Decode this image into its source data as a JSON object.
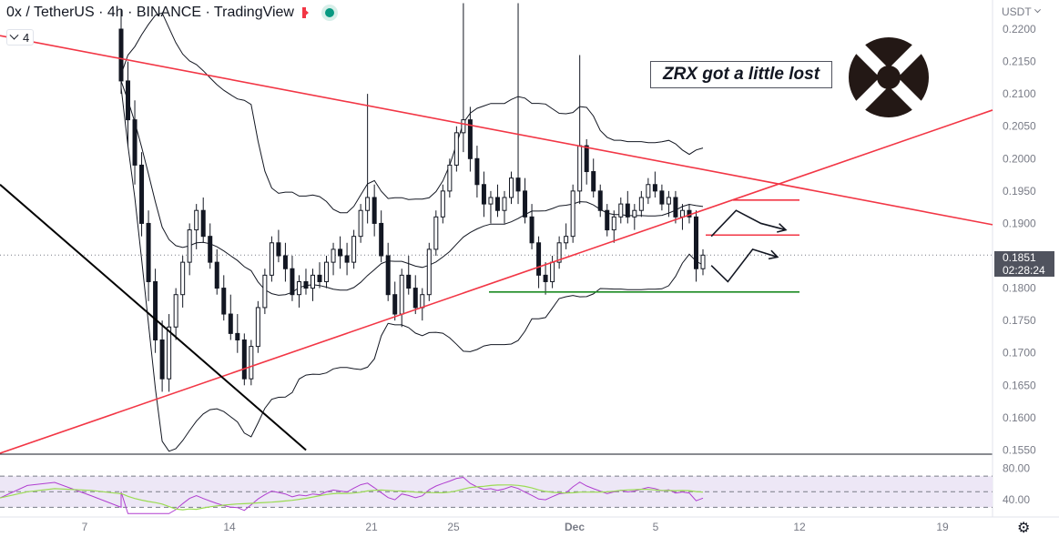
{
  "header": {
    "title": "0x / TetherUS · 4h · BINANCE · TradingView",
    "indicator_count": "4"
  },
  "annotation": "ZRX got a little lost",
  "currency": "USDT",
  "price_tag": {
    "price": "0.1851",
    "countdown": "02:28:24"
  },
  "colors": {
    "trend_red": "#f23645",
    "support_green": "#1b8a22",
    "candle": "#131722",
    "rsi": "#b03fd0",
    "rsi_ma": "#9bdc53",
    "rsi_band": "#ede7f6"
  },
  "chart_data": {
    "type": "candlestick",
    "y_axis": {
      "ticks": [
        "0.2200",
        "0.2150",
        "0.2100",
        "0.2050",
        "0.2000",
        "0.1950",
        "0.1900",
        "0.1850",
        "0.1800",
        "0.1750",
        "0.1700",
        "0.1650",
        "0.1600",
        "0.1550"
      ],
      "ylim": [
        0.1545,
        0.2245
      ]
    },
    "x_axis": {
      "ticks": [
        "7",
        "14",
        "21",
        "25",
        "Dec",
        "5",
        "12",
        "19"
      ]
    },
    "series": [
      {
        "type": "candles",
        "ohlc": [
          [
            0.22,
            0.223,
            0.21,
            0.212
          ],
          [
            0.212,
            0.215,
            0.202,
            0.206
          ],
          [
            0.206,
            0.209,
            0.196,
            0.199
          ],
          [
            0.199,
            0.201,
            0.188,
            0.19
          ],
          [
            0.19,
            0.192,
            0.178,
            0.181
          ],
          [
            0.181,
            0.183,
            0.17,
            0.172
          ],
          [
            0.172,
            0.175,
            0.164,
            0.166
          ],
          [
            0.166,
            0.176,
            0.164,
            0.174
          ],
          [
            0.174,
            0.18,
            0.172,
            0.179
          ],
          [
            0.179,
            0.185,
            0.177,
            0.184
          ],
          [
            0.184,
            0.19,
            0.182,
            0.189
          ],
          [
            0.189,
            0.193,
            0.186,
            0.192
          ],
          [
            0.192,
            0.194,
            0.187,
            0.188
          ],
          [
            0.188,
            0.19,
            0.183,
            0.184
          ],
          [
            0.184,
            0.186,
            0.179,
            0.18
          ],
          [
            0.18,
            0.182,
            0.175,
            0.176
          ],
          [
            0.176,
            0.179,
            0.172,
            0.173
          ],
          [
            0.173,
            0.176,
            0.17,
            0.172
          ],
          [
            0.172,
            0.173,
            0.165,
            0.166
          ],
          [
            0.166,
            0.172,
            0.165,
            0.171
          ],
          [
            0.171,
            0.178,
            0.17,
            0.177
          ],
          [
            0.177,
            0.183,
            0.176,
            0.182
          ],
          [
            0.182,
            0.188,
            0.181,
            0.187
          ],
          [
            0.187,
            0.189,
            0.184,
            0.185
          ],
          [
            0.185,
            0.187,
            0.181,
            0.183
          ],
          [
            0.183,
            0.185,
            0.178,
            0.179
          ],
          [
            0.179,
            0.182,
            0.177,
            0.181
          ],
          [
            0.181,
            0.183,
            0.179,
            0.18
          ],
          [
            0.18,
            0.183,
            0.178,
            0.182
          ],
          [
            0.182,
            0.184,
            0.18,
            0.181
          ],
          [
            0.181,
            0.185,
            0.18,
            0.184
          ],
          [
            0.184,
            0.187,
            0.182,
            0.186
          ],
          [
            0.186,
            0.188,
            0.183,
            0.185
          ],
          [
            0.185,
            0.187,
            0.182,
            0.184
          ],
          [
            0.184,
            0.189,
            0.183,
            0.188
          ],
          [
            0.188,
            0.193,
            0.187,
            0.192
          ],
          [
            0.192,
            0.21,
            0.19,
            0.194
          ],
          [
            0.194,
            0.196,
            0.188,
            0.19
          ],
          [
            0.19,
            0.192,
            0.184,
            0.185
          ],
          [
            0.185,
            0.187,
            0.178,
            0.179
          ],
          [
            0.179,
            0.181,
            0.175,
            0.176
          ],
          [
            0.176,
            0.183,
            0.174,
            0.182
          ],
          [
            0.182,
            0.185,
            0.179,
            0.18
          ],
          [
            0.18,
            0.182,
            0.176,
            0.177
          ],
          [
            0.177,
            0.18,
            0.175,
            0.179
          ],
          [
            0.179,
            0.187,
            0.178,
            0.186
          ],
          [
            0.186,
            0.192,
            0.185,
            0.191
          ],
          [
            0.191,
            0.196,
            0.19,
            0.195
          ],
          [
            0.195,
            0.2,
            0.194,
            0.199
          ],
          [
            0.199,
            0.205,
            0.198,
            0.204
          ],
          [
            0.204,
            0.224,
            0.201,
            0.206
          ],
          [
            0.206,
            0.208,
            0.198,
            0.2
          ],
          [
            0.2,
            0.202,
            0.194,
            0.196
          ],
          [
            0.196,
            0.198,
            0.191,
            0.193
          ],
          [
            0.193,
            0.195,
            0.19,
            0.194
          ],
          [
            0.194,
            0.196,
            0.191,
            0.192
          ],
          [
            0.192,
            0.195,
            0.19,
            0.194
          ],
          [
            0.194,
            0.198,
            0.193,
            0.197
          ],
          [
            0.197,
            0.224,
            0.193,
            0.195
          ],
          [
            0.195,
            0.197,
            0.19,
            0.191
          ],
          [
            0.191,
            0.193,
            0.186,
            0.187
          ],
          [
            0.187,
            0.188,
            0.18,
            0.182
          ],
          [
            0.182,
            0.184,
            0.179,
            0.181
          ],
          [
            0.181,
            0.185,
            0.18,
            0.184
          ],
          [
            0.184,
            0.188,
            0.183,
            0.187
          ],
          [
            0.187,
            0.19,
            0.186,
            0.188
          ],
          [
            0.188,
            0.196,
            0.187,
            0.195
          ],
          [
            0.195,
            0.216,
            0.193,
            0.202
          ],
          [
            0.202,
            0.203,
            0.196,
            0.198
          ],
          [
            0.198,
            0.2,
            0.194,
            0.195
          ],
          [
            0.195,
            0.196,
            0.191,
            0.192
          ],
          [
            0.192,
            0.193,
            0.188,
            0.189
          ],
          [
            0.189,
            0.192,
            0.187,
            0.191
          ],
          [
            0.191,
            0.194,
            0.19,
            0.193
          ],
          [
            0.193,
            0.195,
            0.19,
            0.191
          ],
          [
            0.191,
            0.193,
            0.189,
            0.192
          ],
          [
            0.192,
            0.195,
            0.191,
            0.194
          ],
          [
            0.194,
            0.197,
            0.193,
            0.196
          ],
          [
            0.196,
            0.198,
            0.194,
            0.195
          ],
          [
            0.195,
            0.196,
            0.192,
            0.193
          ],
          [
            0.193,
            0.195,
            0.191,
            0.194
          ],
          [
            0.194,
            0.195,
            0.19,
            0.191
          ],
          [
            0.191,
            0.193,
            0.189,
            0.192
          ],
          [
            0.192,
            0.193,
            0.19,
            0.191
          ],
          [
            0.191,
            0.192,
            0.181,
            0.183
          ],
          [
            0.183,
            0.186,
            0.182,
            0.1851
          ]
        ]
      },
      {
        "type": "line",
        "role": "bollinger-upper"
      },
      {
        "type": "line",
        "role": "bollinger-basis"
      },
      {
        "type": "line",
        "role": "bollinger-lower"
      }
    ],
    "drawings": [
      {
        "type": "trendline",
        "color": "red",
        "from": [
          0,
          0.219
        ],
        "to": [
          120,
          0.1898
        ]
      },
      {
        "type": "trendline",
        "color": "red",
        "from": [
          0,
          0.1545
        ],
        "to": [
          120,
          0.2075
        ]
      },
      {
        "type": "trendline",
        "color": "black",
        "from": [
          0,
          0.196
        ],
        "to": [
          37,
          0.155
        ]
      },
      {
        "type": "hline",
        "color": "red",
        "value": 0.1936
      },
      {
        "type": "hline",
        "color": "red",
        "value": 0.1882
      },
      {
        "type": "hline",
        "color": "green",
        "value": 0.1794
      },
      {
        "type": "projection-arrow",
        "path": [
          [
            86,
            0.188
          ],
          [
            89,
            0.192
          ],
          [
            92,
            0.19
          ],
          [
            95,
            0.189
          ]
        ]
      },
      {
        "type": "projection-arrow",
        "path": [
          [
            86,
            0.1835
          ],
          [
            88,
            0.181
          ],
          [
            91,
            0.186
          ],
          [
            94,
            0.1848
          ]
        ]
      }
    ],
    "rsi": {
      "levels": [
        "80.00",
        "40.00"
      ],
      "upper": 70,
      "lower": 30,
      "middle": 50
    },
    "legend": "none",
    "grid": false
  }
}
